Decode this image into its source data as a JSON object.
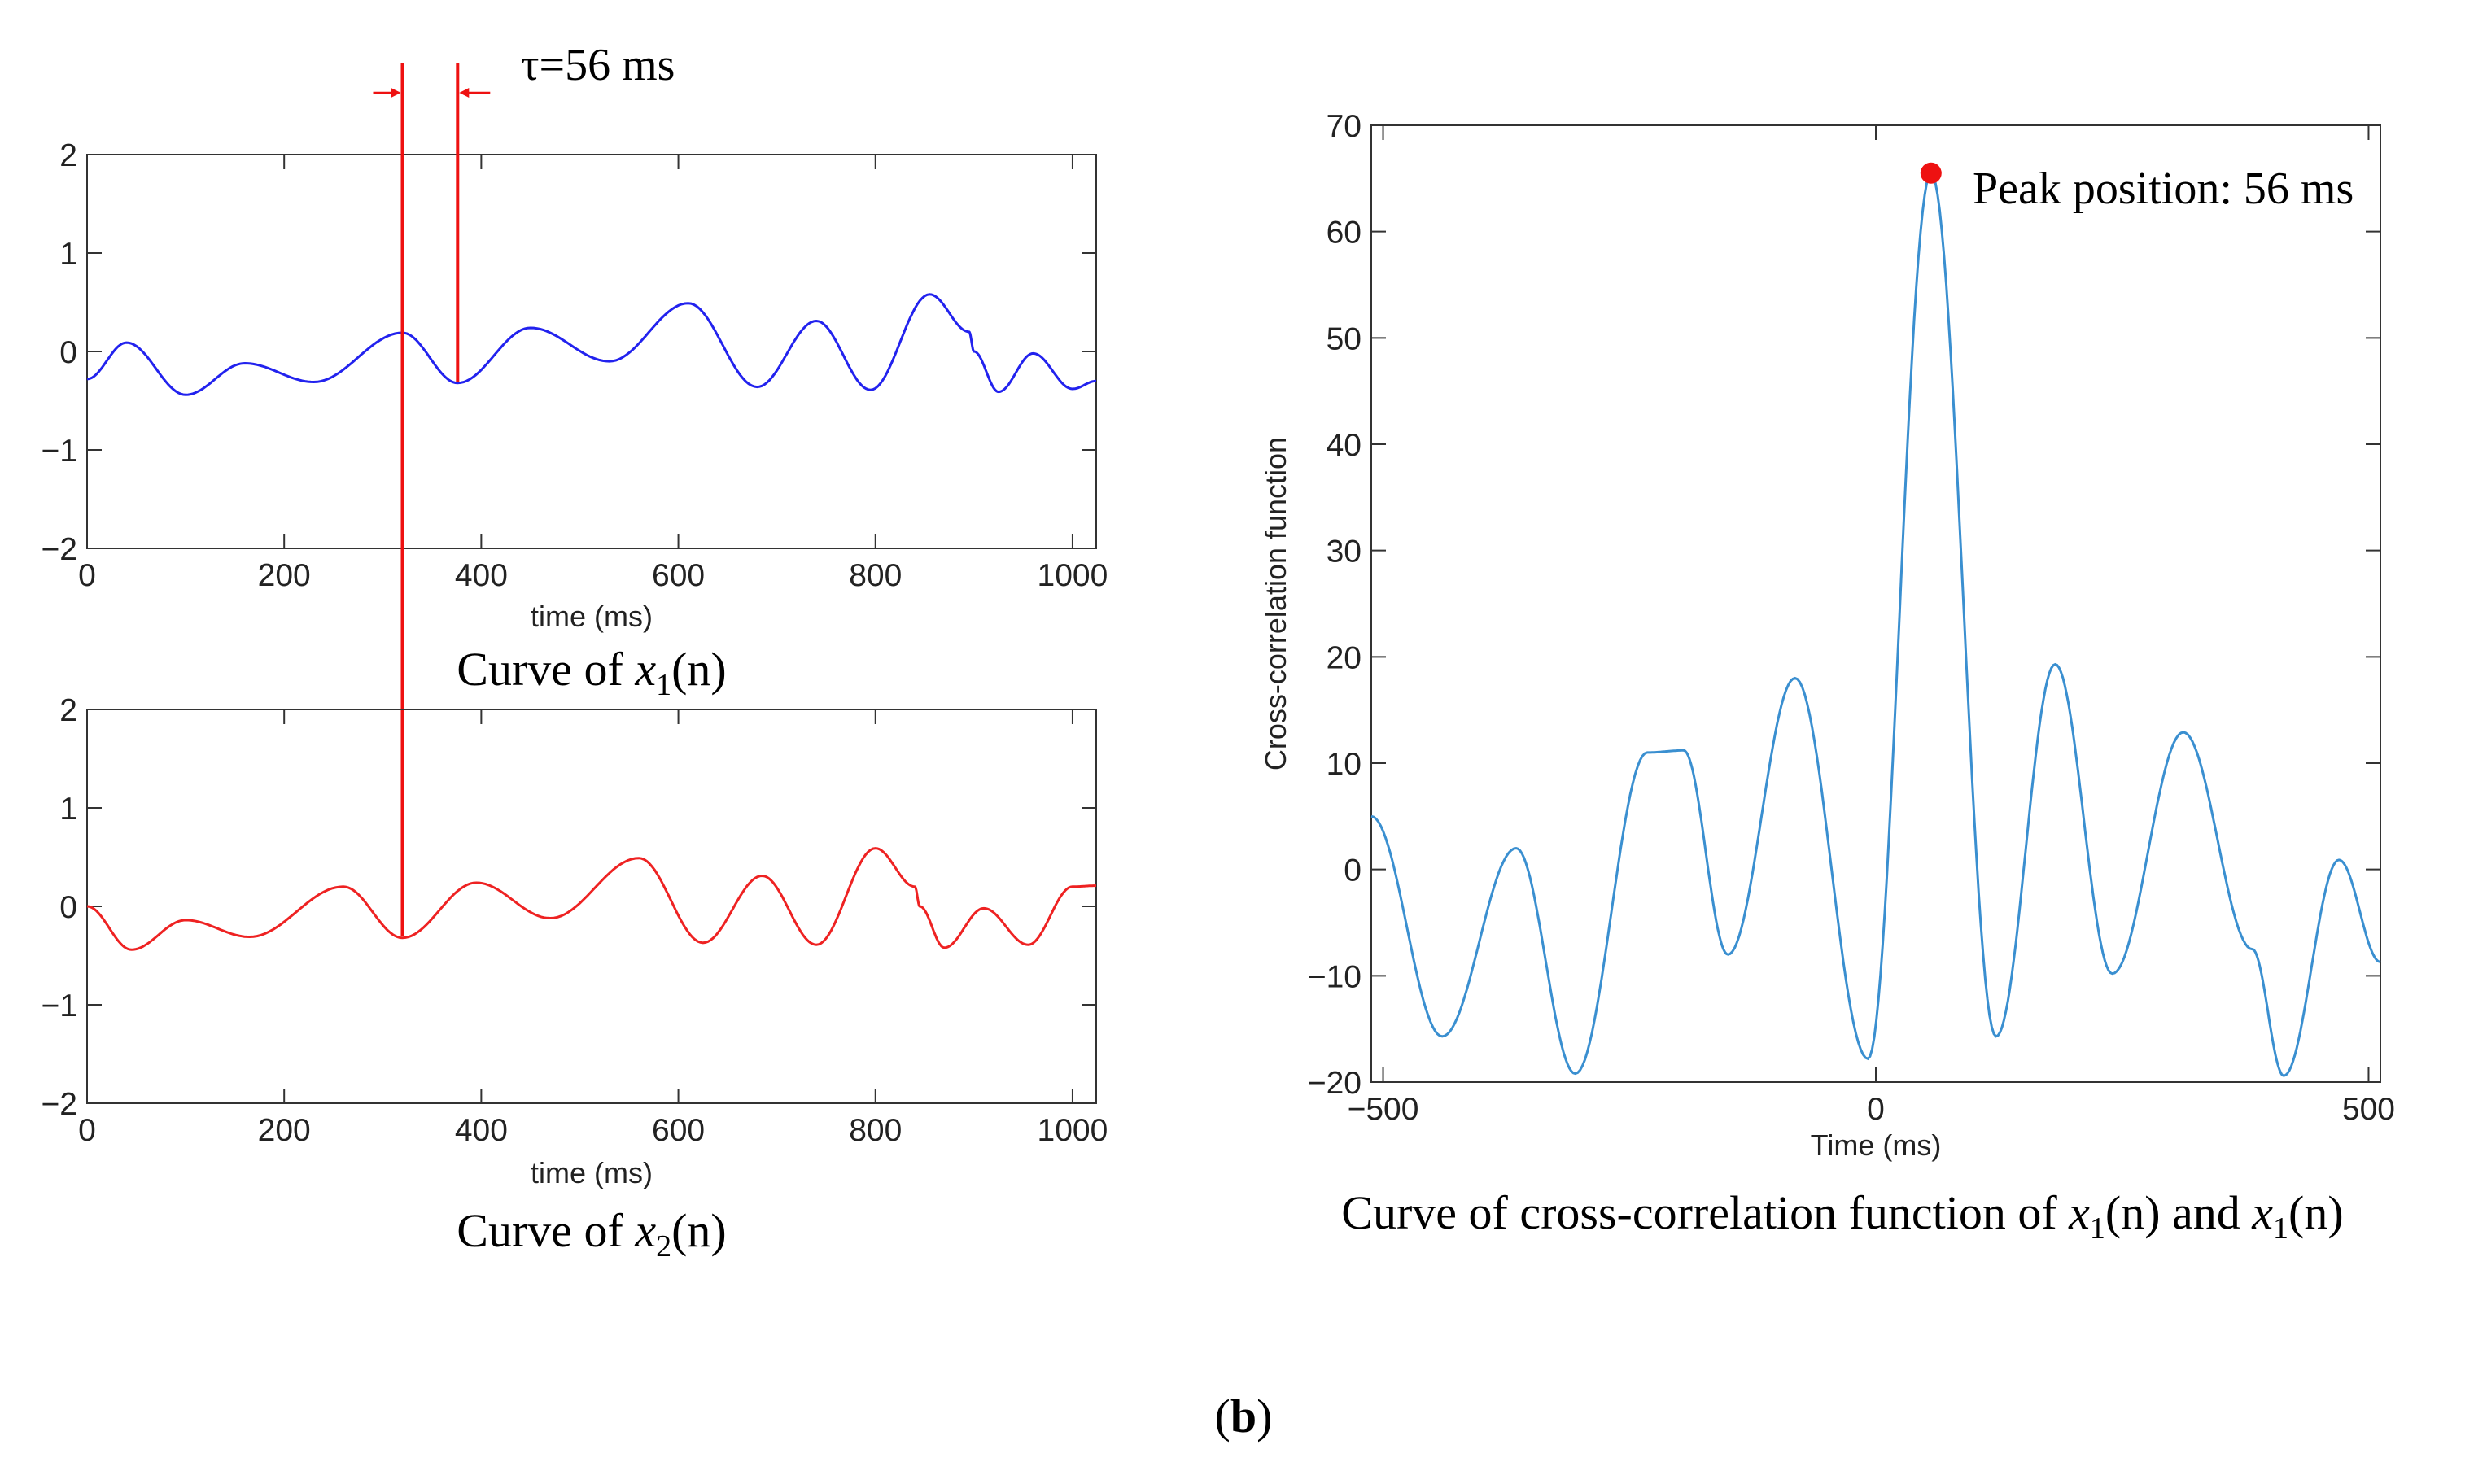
{
  "figure": {
    "panel_label_open": "(",
    "panel_label_letter": "b",
    "panel_label_close": ")"
  },
  "chart_data": [
    {
      "type": "line",
      "id": "x1",
      "xlabel": "time (ms)",
      "ylabel": "",
      "xlim": [
        0,
        1024
      ],
      "ylim": [
        -2,
        2
      ],
      "xticks": [
        0,
        200,
        400,
        600,
        800,
        1000
      ],
      "yticks": [
        2,
        1,
        0,
        -1,
        -2
      ],
      "ytick_labels": [
        "2",
        "1",
        "0",
        "−1",
        "−2"
      ],
      "caption_prefix": "Curve of ",
      "caption_var": "x",
      "caption_sub": "1",
      "caption_suffix": "(n)",
      "color": "#2222ee",
      "series": [
        {
          "name": "x1(n)",
          "x": [
            0,
            40,
            100,
            160,
            230,
            320,
            376,
            450,
            530,
            610,
            680,
            740,
            795,
            855,
            895,
            900,
            925,
            960,
            1000,
            1024
          ],
          "y": [
            -0.28,
            0.09,
            -0.44,
            -0.12,
            -0.31,
            0.19,
            -0.32,
            0.24,
            -0.1,
            0.49,
            -0.36,
            0.31,
            -0.39,
            0.58,
            0.2,
            0.0,
            -0.41,
            -0.02,
            -0.38,
            -0.3
          ]
        }
      ],
      "annotation": {
        "text": "τ=56 ms",
        "markers_x": [
          320,
          376
        ],
        "color": "#ee1111"
      }
    },
    {
      "type": "line",
      "id": "x2",
      "xlabel": "time (ms)",
      "ylabel": "",
      "xlim": [
        0,
        1024
      ],
      "ylim": [
        -2,
        2
      ],
      "xticks": [
        0,
        200,
        400,
        600,
        800,
        1000
      ],
      "yticks": [
        2,
        1,
        0,
        -1,
        -2
      ],
      "ytick_labels": [
        "2",
        "1",
        "0",
        "−1",
        "−2"
      ],
      "caption_prefix": "Curve of ",
      "caption_var": "x",
      "caption_sub": "2",
      "caption_suffix": "(n)",
      "color": "#ee2222",
      "series": [
        {
          "name": "x2(n)",
          "x": [
            0,
            45,
            100,
            165,
            260,
            320,
            395,
            470,
            560,
            625,
            685,
            740,
            800,
            840,
            845,
            870,
            910,
            955,
            1000,
            1024
          ],
          "y": [
            0.0,
            -0.44,
            -0.14,
            -0.31,
            0.2,
            -0.32,
            0.24,
            -0.12,
            0.49,
            -0.37,
            0.31,
            -0.39,
            0.59,
            0.2,
            0.0,
            -0.42,
            -0.02,
            -0.39,
            0.2,
            0.21
          ]
        }
      ]
    },
    {
      "type": "line",
      "id": "xcorr",
      "title": "",
      "xlabel": "Time (ms)",
      "ylabel": "Cross-correlation function",
      "xlim": [
        -512,
        512
      ],
      "ylim": [
        -20,
        70
      ],
      "xticks": [
        -500,
        0,
        500
      ],
      "xtick_labels": [
        "−500",
        "0",
        "500"
      ],
      "yticks": [
        70,
        60,
        50,
        40,
        30,
        20,
        10,
        0,
        -10,
        -20
      ],
      "ytick_labels": [
        "70",
        "60",
        "50",
        "40",
        "30",
        "20",
        "10",
        "0",
        "−10",
        "−20"
      ],
      "caption": "Curve of cross-correlation function of  ",
      "caption_var1": "x",
      "caption_sub1": "1",
      "caption_mid": "(n) and ",
      "caption_var2": "x",
      "caption_sub2": "1",
      "caption_end": "(n)",
      "color": "#3a8fd0",
      "series": [
        {
          "name": "cross-correlation",
          "x": [
            -512,
            -440,
            -365,
            -305,
            -232,
            -195,
            -150,
            -82,
            -8,
            56,
            122,
            182,
            240,
            312,
            382,
            414,
            470,
            512
          ],
          "y": [
            5,
            -15.7,
            2,
            -19.2,
            11,
            11.2,
            -8,
            18,
            -17.8,
            65.5,
            -15.7,
            19.3,
            -9.8,
            12.9,
            -7.5,
            -19.4,
            0.9,
            -8.7
          ]
        }
      ],
      "peak": {
        "x": 56,
        "y": 65.5,
        "label": "Peak position: 56 ms",
        "color": "#ee1111"
      }
    }
  ]
}
